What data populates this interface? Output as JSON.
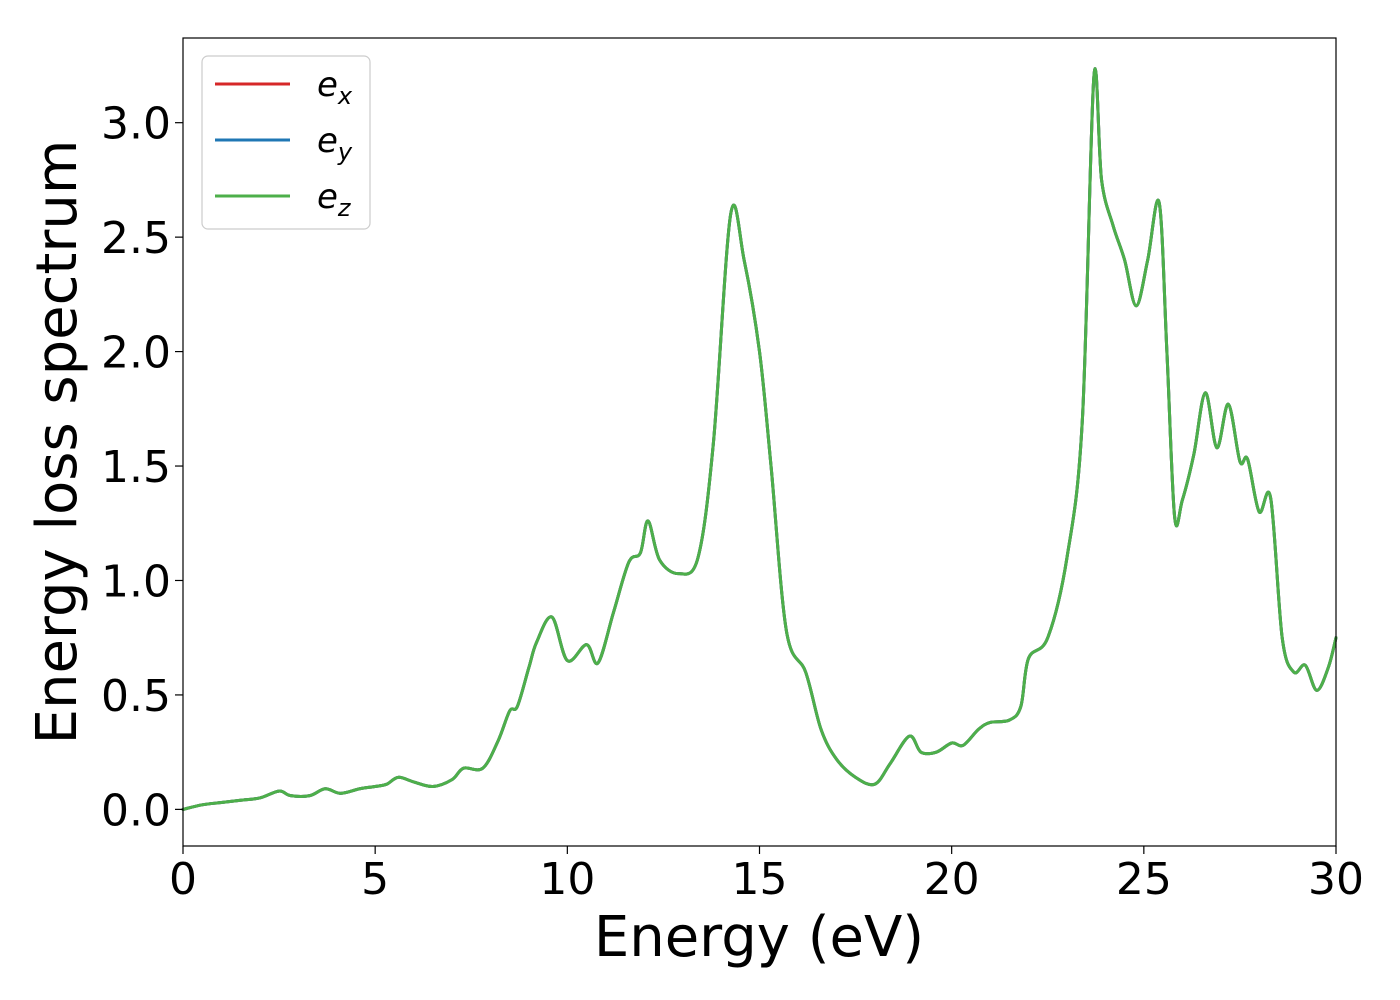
{
  "chart_data": {
    "type": "line",
    "xlabel": "Energy (eV)",
    "ylabel": "Energy loss spectrum",
    "xlim": [
      0,
      30
    ],
    "ylim": [
      -0.16,
      3.37
    ],
    "xticks": [
      "0",
      "5",
      "10",
      "15",
      "20",
      "25",
      "30"
    ],
    "yticks": [
      "0.0",
      "0.5",
      "1.0",
      "1.5",
      "2.0",
      "2.5",
      "3.0"
    ],
    "grid": false,
    "legend_position": "top-left",
    "x": [
      0.0,
      0.5,
      1.0,
      1.5,
      2.0,
      2.5,
      2.8,
      3.3,
      3.7,
      4.1,
      4.6,
      5.0,
      5.3,
      5.6,
      6.0,
      6.5,
      7.0,
      7.3,
      7.8,
      8.2,
      8.5,
      8.7,
      9.0,
      9.2,
      9.6,
      10.0,
      10.5,
      10.8,
      11.2,
      11.6,
      11.9,
      12.1,
      12.4,
      12.9,
      13.4,
      13.8,
      14.25,
      14.6,
      15.0,
      15.3,
      15.7,
      16.2,
      16.6,
      17.0,
      17.5,
      18.0,
      18.4,
      18.9,
      19.2,
      19.6,
      20.0,
      20.3,
      20.7,
      21.0,
      21.5,
      21.8,
      22.0,
      22.5,
      23.0,
      23.4,
      23.7,
      23.9,
      24.2,
      24.5,
      24.8,
      25.1,
      25.4,
      25.6,
      25.8,
      26.0,
      26.3,
      26.6,
      26.9,
      27.2,
      27.5,
      27.7,
      28.0,
      28.3,
      28.6,
      28.9,
      29.2,
      29.5,
      29.8,
      30.0
    ],
    "series": [
      {
        "name": "e_x",
        "color": "#d62728",
        "values": [
          0.0,
          0.02,
          0.03,
          0.04,
          0.05,
          0.08,
          0.06,
          0.06,
          0.09,
          0.07,
          0.09,
          0.1,
          0.11,
          0.14,
          0.12,
          0.1,
          0.13,
          0.18,
          0.18,
          0.3,
          0.43,
          0.45,
          0.62,
          0.73,
          0.84,
          0.65,
          0.72,
          0.64,
          0.86,
          1.08,
          1.12,
          1.26,
          1.09,
          1.03,
          1.1,
          1.6,
          2.6,
          2.4,
          2.0,
          1.5,
          0.78,
          0.6,
          0.35,
          0.22,
          0.14,
          0.11,
          0.2,
          0.32,
          0.25,
          0.25,
          0.29,
          0.28,
          0.35,
          0.38,
          0.39,
          0.45,
          0.66,
          0.75,
          1.1,
          1.7,
          3.2,
          2.75,
          2.55,
          2.4,
          2.2,
          2.4,
          2.65,
          2.0,
          1.28,
          1.35,
          1.55,
          1.82,
          1.58,
          1.77,
          1.52,
          1.53,
          1.3,
          1.36,
          0.75,
          0.6,
          0.63,
          0.52,
          0.62,
          0.75
        ]
      },
      {
        "name": "e_y",
        "color": "#1f77b4",
        "values": [
          0.0,
          0.02,
          0.03,
          0.04,
          0.05,
          0.08,
          0.06,
          0.06,
          0.09,
          0.07,
          0.09,
          0.1,
          0.11,
          0.14,
          0.12,
          0.1,
          0.13,
          0.18,
          0.18,
          0.3,
          0.43,
          0.45,
          0.62,
          0.73,
          0.84,
          0.65,
          0.72,
          0.64,
          0.86,
          1.08,
          1.12,
          1.26,
          1.09,
          1.03,
          1.1,
          1.6,
          2.6,
          2.4,
          2.0,
          1.5,
          0.78,
          0.6,
          0.35,
          0.22,
          0.14,
          0.11,
          0.2,
          0.32,
          0.25,
          0.25,
          0.29,
          0.28,
          0.35,
          0.38,
          0.39,
          0.45,
          0.66,
          0.75,
          1.1,
          1.7,
          3.2,
          2.75,
          2.55,
          2.4,
          2.2,
          2.4,
          2.65,
          2.0,
          1.28,
          1.35,
          1.55,
          1.82,
          1.58,
          1.77,
          1.52,
          1.53,
          1.3,
          1.36,
          0.75,
          0.6,
          0.63,
          0.52,
          0.62,
          0.75
        ]
      },
      {
        "name": "e_z",
        "color": "#4daf4a",
        "values": [
          0.0,
          0.02,
          0.03,
          0.04,
          0.05,
          0.08,
          0.06,
          0.06,
          0.09,
          0.07,
          0.09,
          0.1,
          0.11,
          0.14,
          0.12,
          0.1,
          0.13,
          0.18,
          0.18,
          0.3,
          0.43,
          0.45,
          0.62,
          0.73,
          0.84,
          0.65,
          0.72,
          0.64,
          0.86,
          1.08,
          1.12,
          1.26,
          1.09,
          1.03,
          1.1,
          1.6,
          2.6,
          2.4,
          2.0,
          1.5,
          0.78,
          0.6,
          0.35,
          0.22,
          0.14,
          0.11,
          0.2,
          0.32,
          0.25,
          0.25,
          0.29,
          0.28,
          0.35,
          0.38,
          0.39,
          0.45,
          0.66,
          0.75,
          1.1,
          1.7,
          3.2,
          2.75,
          2.55,
          2.4,
          2.2,
          2.4,
          2.65,
          2.0,
          1.28,
          1.35,
          1.55,
          1.82,
          1.58,
          1.77,
          1.52,
          1.53,
          1.3,
          1.36,
          0.75,
          0.6,
          0.63,
          0.52,
          0.62,
          0.75
        ]
      }
    ],
    "legend": [
      {
        "base": "e",
        "sub": "x",
        "color": "#d62728"
      },
      {
        "base": "e",
        "sub": "y",
        "color": "#1f77b4"
      },
      {
        "base": "e",
        "sub": "z",
        "color": "#4daf4a"
      }
    ]
  }
}
